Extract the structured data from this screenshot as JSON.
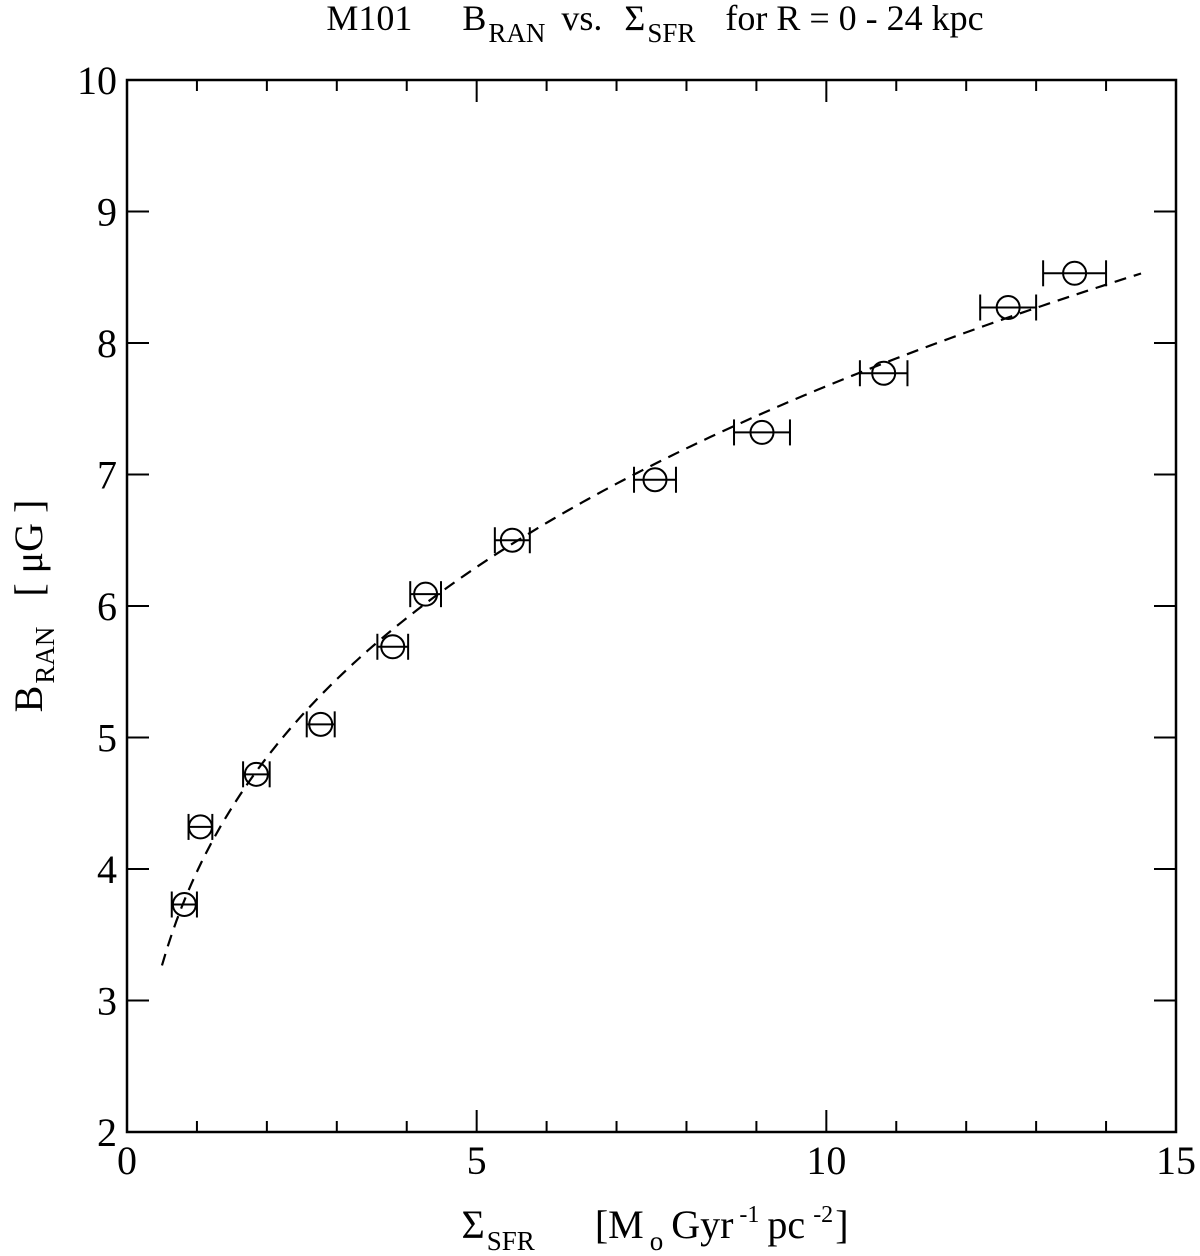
{
  "chart_data": {
    "type": "scatter",
    "title": {
      "galaxy": "M101",
      "quantity_y_main": "B",
      "quantity_y_sub": "RAN",
      "versus": "vs.",
      "quantity_x_main": "Σ",
      "quantity_x_sub": "SFR",
      "range": "for   R = 0 - 24 kpc"
    },
    "xlabel": {
      "symbol": "Σ",
      "symbol_sub": "SFR",
      "unit_open": "[M",
      "unit_sub": "o",
      "unit_gyr": "Gyr",
      "unit_gyr_sup": "-1",
      "unit_pc": "pc",
      "unit_pc_sup": "-2",
      "unit_close": "]"
    },
    "ylabel": {
      "symbol": "B",
      "symbol_sub": "RAN",
      "unit": "[ μG ]"
    },
    "xlim": [
      0,
      15
    ],
    "ylim": [
      2,
      10
    ],
    "x_ticks": [
      0,
      5,
      10,
      15
    ],
    "y_ticks": [
      2,
      3,
      4,
      5,
      6,
      7,
      8,
      9,
      10
    ],
    "x_minor_step": 1,
    "grid": false,
    "points": [
      {
        "x": 0.82,
        "y": 3.73,
        "xerr": 0.18
      },
      {
        "x": 1.05,
        "y": 4.32,
        "xerr": 0.17
      },
      {
        "x": 1.85,
        "y": 4.72,
        "xerr": 0.19
      },
      {
        "x": 2.77,
        "y": 5.1,
        "xerr": 0.2
      },
      {
        "x": 3.8,
        "y": 5.69,
        "xerr": 0.22
      },
      {
        "x": 4.27,
        "y": 6.09,
        "xerr": 0.22
      },
      {
        "x": 5.51,
        "y": 6.5,
        "xerr": 0.25
      },
      {
        "x": 7.55,
        "y": 6.96,
        "xerr": 0.3
      },
      {
        "x": 9.08,
        "y": 7.32,
        "xerr": 0.4
      },
      {
        "x": 10.82,
        "y": 7.77,
        "xerr": 0.34
      },
      {
        "x": 12.6,
        "y": 8.27,
        "xerr": 0.4
      },
      {
        "x": 13.55,
        "y": 8.53,
        "xerr": 0.45
      }
    ],
    "fit": {
      "style": "dashed",
      "form": "power-law",
      "amplitude": 3.98,
      "exponent": 0.285,
      "x_start": 0.5,
      "x_end": 14.5
    }
  }
}
